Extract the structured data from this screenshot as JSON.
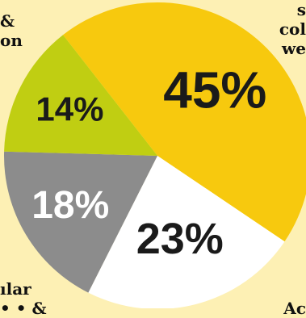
{
  "chart_data": {
    "type": "pie",
    "title": "",
    "slices": [
      {
        "label": "45%",
        "value": 45,
        "color": "#f7c90e",
        "text_color": "#1a1a1a"
      },
      {
        "label": "23%",
        "value": 23,
        "color": "#ffffff",
        "text_color": "#1a1a1a"
      },
      {
        "label": "18%",
        "value": 18,
        "color": "#8c8c8c",
        "text_color": "#ffffff"
      },
      {
        "label": "14%",
        "value": 14,
        "color": "#c0ce12",
        "text_color": "#1a1a1a"
      }
    ]
  },
  "edge_labels": {
    "top_left": "&\non",
    "top_right": "s\ncol\nwe",
    "bottom_left": "ılar\n• • &",
    "bottom_right": "Ac"
  },
  "colors": {
    "background": "#fdf0b4"
  }
}
